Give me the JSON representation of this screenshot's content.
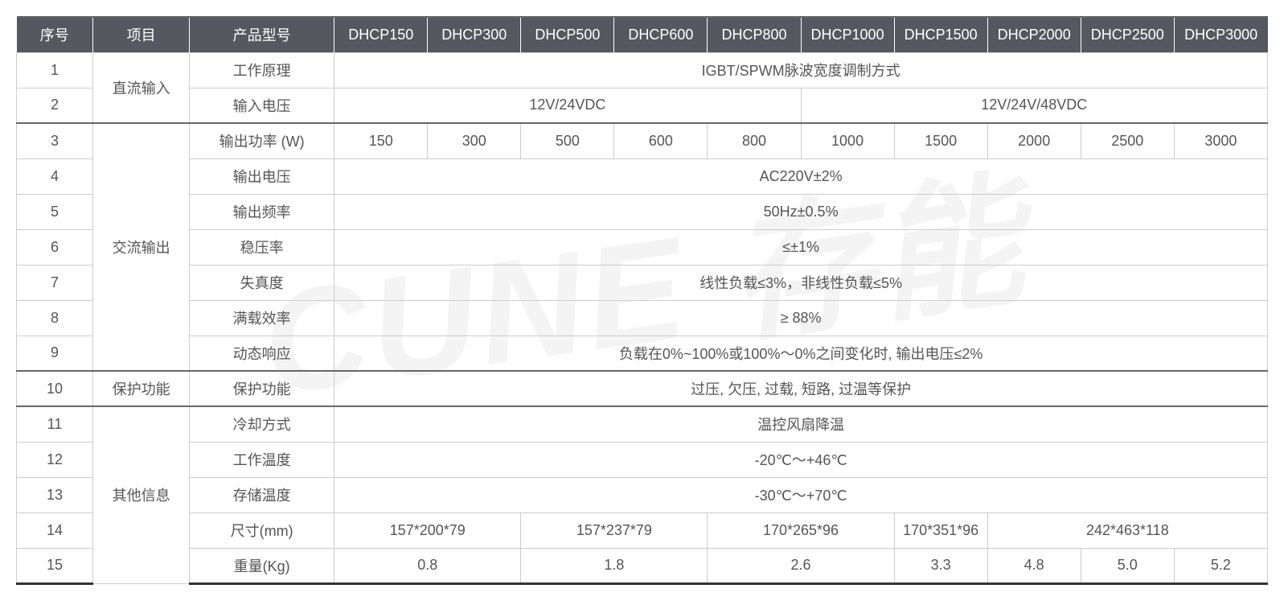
{
  "watermark": "CUNE 存能",
  "colors": {
    "header_bg": "#55585e",
    "header_text": "#ffffff",
    "cell_text": "#555555",
    "border": "#cccccc",
    "section_border": "#666666"
  },
  "table": {
    "headers": {
      "seq": "序号",
      "item": "项目",
      "param": "产品型号",
      "models": [
        "DHCP150",
        "DHCP300",
        "DHCP500",
        "DHCP600",
        "DHCP800",
        "DHCP1000",
        "DHCP1500",
        "DHCP2000",
        "DHCP2500",
        "DHCP3000"
      ]
    },
    "sections": [
      {
        "item": "直流输入",
        "rows": [
          {
            "seq": "1",
            "param": "工作原理",
            "cells": [
              {
                "span": 10,
                "value": "IGBT/SPWM脉波宽度调制方式"
              }
            ]
          },
          {
            "seq": "2",
            "param": "输入电压",
            "cells": [
              {
                "span": 5,
                "value": "12V/24VDC"
              },
              {
                "span": 5,
                "value": "12V/24V/48VDC"
              }
            ]
          }
        ]
      },
      {
        "item": "交流输出",
        "rows": [
          {
            "seq": "3",
            "param": "输出功率 (W)",
            "cells": [
              {
                "span": 1,
                "value": "150"
              },
              {
                "span": 1,
                "value": "300"
              },
              {
                "span": 1,
                "value": "500"
              },
              {
                "span": 1,
                "value": "600"
              },
              {
                "span": 1,
                "value": "800"
              },
              {
                "span": 1,
                "value": "1000"
              },
              {
                "span": 1,
                "value": "1500"
              },
              {
                "span": 1,
                "value": "2000"
              },
              {
                "span": 1,
                "value": "2500"
              },
              {
                "span": 1,
                "value": "3000"
              }
            ]
          },
          {
            "seq": "4",
            "param": "输出电压",
            "cells": [
              {
                "span": 10,
                "value": "AC220V±2%"
              }
            ]
          },
          {
            "seq": "5",
            "param": "输出频率",
            "cells": [
              {
                "span": 10,
                "value": "50Hz±0.5%"
              }
            ]
          },
          {
            "seq": "6",
            "param": "稳压率",
            "cells": [
              {
                "span": 10,
                "value": "≤±1%"
              }
            ]
          },
          {
            "seq": "7",
            "param": "失真度",
            "cells": [
              {
                "span": 10,
                "value": "线性负载≤3%，非线性负载≤5%"
              }
            ]
          },
          {
            "seq": "8",
            "param": "满载效率",
            "cells": [
              {
                "span": 10,
                "value": "≥ 88%"
              }
            ]
          },
          {
            "seq": "9",
            "param": "动态响应",
            "cells": [
              {
                "span": 10,
                "value": "负载在0%~100%或100%～0%之间变化时, 输出电压≤2%"
              }
            ]
          }
        ]
      },
      {
        "item": "保护功能",
        "rows": [
          {
            "seq": "10",
            "param": "保护功能",
            "cells": [
              {
                "span": 10,
                "value": "过压, 欠压, 过载, 短路, 过温等保护"
              }
            ]
          }
        ]
      },
      {
        "item": "其他信息",
        "rows": [
          {
            "seq": "11",
            "param": "冷却方式",
            "cells": [
              {
                "span": 10,
                "value": "温控风扇降温"
              }
            ]
          },
          {
            "seq": "12",
            "param": "工作温度",
            "cells": [
              {
                "span": 10,
                "value": "-20℃～+46℃"
              }
            ]
          },
          {
            "seq": "13",
            "param": "存储温度",
            "cells": [
              {
                "span": 10,
                "value": "-30℃～+70℃"
              }
            ]
          },
          {
            "seq": "14",
            "param": "尺寸(mm)",
            "cells": [
              {
                "span": 2,
                "value": "157*200*79"
              },
              {
                "span": 2,
                "value": "157*237*79"
              },
              {
                "span": 2,
                "value": "170*265*96"
              },
              {
                "span": 1,
                "value": "170*351*96"
              },
              {
                "span": 3,
                "value": "242*463*118"
              }
            ]
          },
          {
            "seq": "15",
            "param": "重量(Kg)",
            "cells": [
              {
                "span": 2,
                "value": "0.8"
              },
              {
                "span": 2,
                "value": "1.8"
              },
              {
                "span": 2,
                "value": "2.6"
              },
              {
                "span": 1,
                "value": "3.3"
              },
              {
                "span": 1,
                "value": "4.8"
              },
              {
                "span": 1,
                "value": "5.0"
              },
              {
                "span": 1,
                "value": "5.2"
              }
            ]
          }
        ]
      }
    ]
  }
}
